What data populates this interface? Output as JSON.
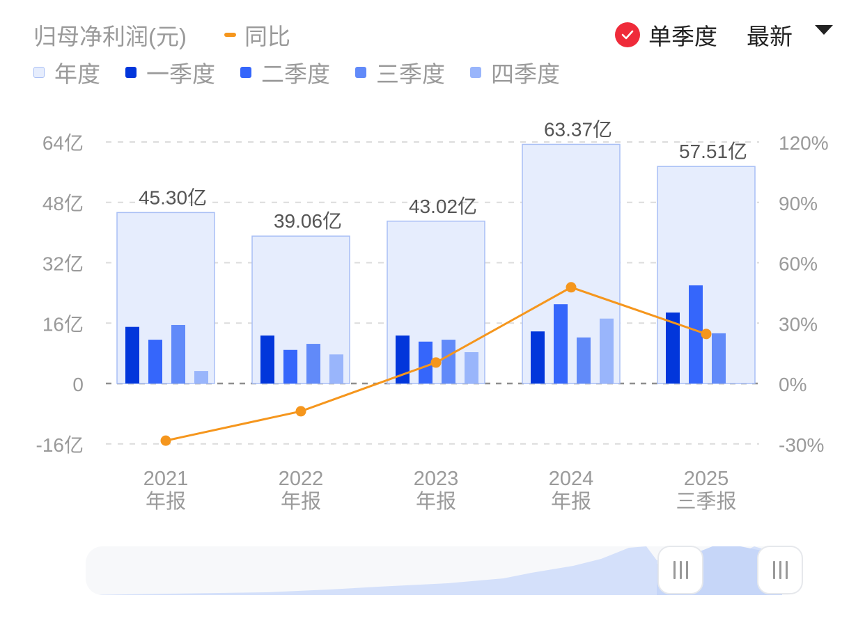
{
  "header": {
    "title": "归母净利润(元)",
    "yoy_legend_label": "同比",
    "single_quarter_label": "单季度",
    "single_quarter_checked": true,
    "period_select_value": "最新"
  },
  "legend": [
    {
      "label": "年度",
      "color": "#e6edfd",
      "border": "#a9bff5"
    },
    {
      "label": "一季度",
      "color": "#0236db"
    },
    {
      "label": "二季度",
      "color": "#3566fb"
    },
    {
      "label": "三季度",
      "color": "#618af9"
    },
    {
      "label": "四季度",
      "color": "#99b5fb"
    }
  ],
  "colors": {
    "yoy_line": "#f5961d",
    "check_badge": "#ef2b3a",
    "axis_text": "#9a9a9a",
    "annual_fill": "#e6edfd",
    "annual_border": "#a9bff5"
  },
  "chart_data": {
    "type": "bar",
    "title": "归母净利润(元)",
    "categories": [
      "2021 年报",
      "2022 年报",
      "2023 年报",
      "2024 年报",
      "2025 三季报"
    ],
    "category_lines": [
      [
        "2021",
        "年报"
      ],
      [
        "2022",
        "年报"
      ],
      [
        "2023",
        "年报"
      ],
      [
        "2024",
        "年报"
      ],
      [
        "2025",
        "三季报"
      ]
    ],
    "series": [
      {
        "name": "年度",
        "values": [
          45.3,
          39.06,
          43.02,
          63.37,
          57.51
        ],
        "labels": [
          "45.30亿",
          "39.06亿",
          "43.02亿",
          "63.37亿",
          "57.51亿"
        ]
      },
      {
        "name": "一季度",
        "values": [
          15.0,
          12.7,
          12.7,
          13.8,
          18.8
        ]
      },
      {
        "name": "二季度",
        "values": [
          11.6,
          8.9,
          11.1,
          21.0,
          26.0
        ]
      },
      {
        "name": "三季度",
        "values": [
          15.5,
          10.5,
          11.6,
          12.2,
          13.3
        ]
      },
      {
        "name": "四季度",
        "values": [
          3.3,
          7.7,
          8.3,
          17.2,
          null
        ]
      },
      {
        "name": "同比",
        "type": "line",
        "axis": "right",
        "values": [
          -28.4,
          -13.8,
          10.4,
          47.8,
          24.6
        ]
      }
    ],
    "ylabel_left_unit": "亿",
    "ylim_left": [
      -16,
      64
    ],
    "yticks_left": [
      "64亿",
      "48亿",
      "32亿",
      "16亿",
      "0",
      "-16亿"
    ],
    "ylim_right": [
      -30,
      120
    ],
    "yticks_right": [
      "120%",
      "90%",
      "60%",
      "30%",
      "0%",
      "-30%"
    ],
    "grid": "dashed horizontal",
    "legend_position": "top-left"
  },
  "slider": {
    "handle_left_glyph": "|||",
    "handle_right_glyph": "|||"
  }
}
